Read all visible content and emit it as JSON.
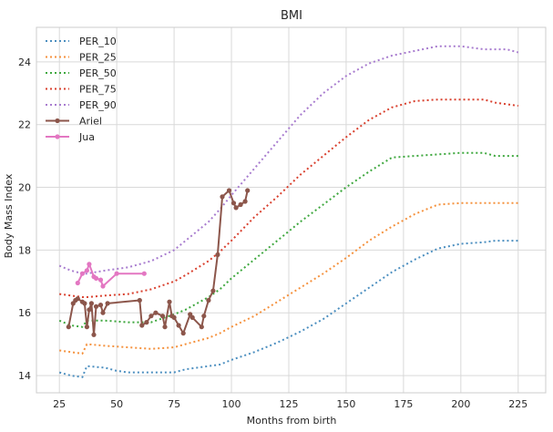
{
  "chart_data": {
    "type": "line",
    "title": "BMI",
    "xlabel": "Months from birth",
    "ylabel": "Body Mass Index",
    "xlim": [
      15,
      237
    ],
    "ylim": [
      13.45,
      25.1
    ],
    "xticks": [
      25,
      50,
      75,
      100,
      125,
      150,
      175,
      200,
      225
    ],
    "yticks": [
      14,
      16,
      18,
      20,
      22,
      24
    ],
    "grid": true,
    "legend_position": "top-left",
    "series": [
      {
        "name": "PER_10",
        "color": "#4C8FC0",
        "style": "dotted",
        "points": [
          [
            25,
            14.1
          ],
          [
            30,
            14.0
          ],
          [
            35,
            13.95
          ],
          [
            37,
            14.3
          ],
          [
            45,
            14.25
          ],
          [
            50,
            14.15
          ],
          [
            55,
            14.1
          ],
          [
            75,
            14.1
          ],
          [
            80,
            14.2
          ],
          [
            90,
            14.3
          ],
          [
            95,
            14.35
          ],
          [
            100,
            14.5
          ],
          [
            110,
            14.75
          ],
          [
            120,
            15.05
          ],
          [
            130,
            15.4
          ],
          [
            140,
            15.8
          ],
          [
            150,
            16.3
          ],
          [
            160,
            16.8
          ],
          [
            170,
            17.3
          ],
          [
            180,
            17.7
          ],
          [
            190,
            18.05
          ],
          [
            200,
            18.2
          ],
          [
            210,
            18.25
          ],
          [
            215,
            18.3
          ],
          [
            225,
            18.3
          ]
        ]
      },
      {
        "name": "PER_25",
        "color": "#F5923E",
        "style": "dotted",
        "points": [
          [
            25,
            14.8
          ],
          [
            30,
            14.75
          ],
          [
            35,
            14.7
          ],
          [
            37,
            15.0
          ],
          [
            45,
            14.95
          ],
          [
            55,
            14.9
          ],
          [
            65,
            14.85
          ],
          [
            75,
            14.9
          ],
          [
            80,
            15.0
          ],
          [
            90,
            15.2
          ],
          [
            95,
            15.35
          ],
          [
            100,
            15.55
          ],
          [
            110,
            15.9
          ],
          [
            120,
            16.35
          ],
          [
            130,
            16.8
          ],
          [
            140,
            17.25
          ],
          [
            150,
            17.75
          ],
          [
            160,
            18.3
          ],
          [
            170,
            18.75
          ],
          [
            180,
            19.15
          ],
          [
            190,
            19.45
          ],
          [
            200,
            19.5
          ],
          [
            210,
            19.5
          ],
          [
            225,
            19.5
          ]
        ]
      },
      {
        "name": "PER_50",
        "color": "#3FA83F",
        "style": "dotted",
        "points": [
          [
            25,
            15.75
          ],
          [
            30,
            15.6
          ],
          [
            35,
            15.55
          ],
          [
            37,
            15.75
          ],
          [
            45,
            15.75
          ],
          [
            55,
            15.7
          ],
          [
            65,
            15.7
          ],
          [
            75,
            15.95
          ],
          [
            80,
            16.1
          ],
          [
            90,
            16.5
          ],
          [
            95,
            16.75
          ],
          [
            100,
            17.1
          ],
          [
            110,
            17.7
          ],
          [
            120,
            18.3
          ],
          [
            130,
            18.9
          ],
          [
            140,
            19.45
          ],
          [
            150,
            20.0
          ],
          [
            160,
            20.5
          ],
          [
            170,
            20.95
          ],
          [
            180,
            21.0
          ],
          [
            190,
            21.05
          ],
          [
            200,
            21.1
          ],
          [
            210,
            21.1
          ],
          [
            215,
            21.0
          ],
          [
            225,
            21.0
          ]
        ]
      },
      {
        "name": "PER_75",
        "color": "#D9412F",
        "style": "dotted",
        "points": [
          [
            25,
            16.6
          ],
          [
            30,
            16.55
          ],
          [
            35,
            16.5
          ],
          [
            37,
            16.5
          ],
          [
            45,
            16.55
          ],
          [
            55,
            16.6
          ],
          [
            65,
            16.75
          ],
          [
            75,
            17.0
          ],
          [
            80,
            17.2
          ],
          [
            90,
            17.65
          ],
          [
            95,
            17.95
          ],
          [
            100,
            18.3
          ],
          [
            110,
            19.05
          ],
          [
            120,
            19.7
          ],
          [
            130,
            20.4
          ],
          [
            140,
            21.0
          ],
          [
            150,
            21.6
          ],
          [
            160,
            22.15
          ],
          [
            170,
            22.55
          ],
          [
            180,
            22.75
          ],
          [
            190,
            22.8
          ],
          [
            200,
            22.8
          ],
          [
            210,
            22.8
          ],
          [
            215,
            22.7
          ],
          [
            225,
            22.6
          ]
        ]
      },
      {
        "name": "PER_90",
        "color": "#A87CCF",
        "style": "dotted",
        "points": [
          [
            25,
            17.5
          ],
          [
            30,
            17.35
          ],
          [
            35,
            17.25
          ],
          [
            37,
            17.25
          ],
          [
            45,
            17.35
          ],
          [
            55,
            17.45
          ],
          [
            65,
            17.65
          ],
          [
            75,
            18.0
          ],
          [
            80,
            18.3
          ],
          [
            90,
            18.9
          ],
          [
            95,
            19.3
          ],
          [
            100,
            19.75
          ],
          [
            110,
            20.6
          ],
          [
            120,
            21.45
          ],
          [
            130,
            22.3
          ],
          [
            140,
            23.0
          ],
          [
            150,
            23.55
          ],
          [
            160,
            23.95
          ],
          [
            170,
            24.2
          ],
          [
            180,
            24.35
          ],
          [
            190,
            24.5
          ],
          [
            200,
            24.5
          ],
          [
            210,
            24.4
          ],
          [
            220,
            24.4
          ],
          [
            225,
            24.3
          ]
        ]
      },
      {
        "name": "Ariel",
        "color": "#8C564B",
        "style": "solid",
        "markers": true,
        "points": [
          [
            29,
            15.55
          ],
          [
            31,
            16.3
          ],
          [
            32,
            16.4
          ],
          [
            33,
            16.45
          ],
          [
            35,
            16.35
          ],
          [
            36,
            16.3
          ],
          [
            37,
            15.55
          ],
          [
            38,
            16.1
          ],
          [
            39,
            16.3
          ],
          [
            40,
            15.3
          ],
          [
            41,
            16.2
          ],
          [
            43,
            16.25
          ],
          [
            44,
            16.0
          ],
          [
            46,
            16.3
          ],
          [
            60,
            16.4
          ],
          [
            61,
            15.6
          ],
          [
            63,
            15.7
          ],
          [
            65,
            15.9
          ],
          [
            67,
            16.0
          ],
          [
            70,
            15.9
          ],
          [
            71,
            15.55
          ],
          [
            73,
            16.35
          ],
          [
            74,
            15.9
          ],
          [
            75,
            15.85
          ],
          [
            77,
            15.6
          ],
          [
            79,
            15.35
          ],
          [
            82,
            15.95
          ],
          [
            83,
            15.85
          ],
          [
            87,
            15.55
          ],
          [
            88,
            15.9
          ],
          [
            90,
            16.4
          ],
          [
            92,
            16.7
          ],
          [
            94,
            17.85
          ],
          [
            96,
            19.7
          ],
          [
            99,
            19.9
          ],
          [
            101,
            19.5
          ],
          [
            102,
            19.35
          ],
          [
            104,
            19.45
          ],
          [
            106,
            19.55
          ],
          [
            107,
            19.9
          ]
        ]
      },
      {
        "name": "Jua",
        "color": "#E377C2",
        "style": "solid",
        "markers": true,
        "points": [
          [
            33,
            16.95
          ],
          [
            35,
            17.25
          ],
          [
            37,
            17.35
          ],
          [
            38,
            17.55
          ],
          [
            40,
            17.15
          ],
          [
            41,
            17.1
          ],
          [
            43,
            17.05
          ],
          [
            44,
            16.85
          ],
          [
            50,
            17.25
          ],
          [
            62,
            17.25
          ]
        ]
      }
    ]
  }
}
